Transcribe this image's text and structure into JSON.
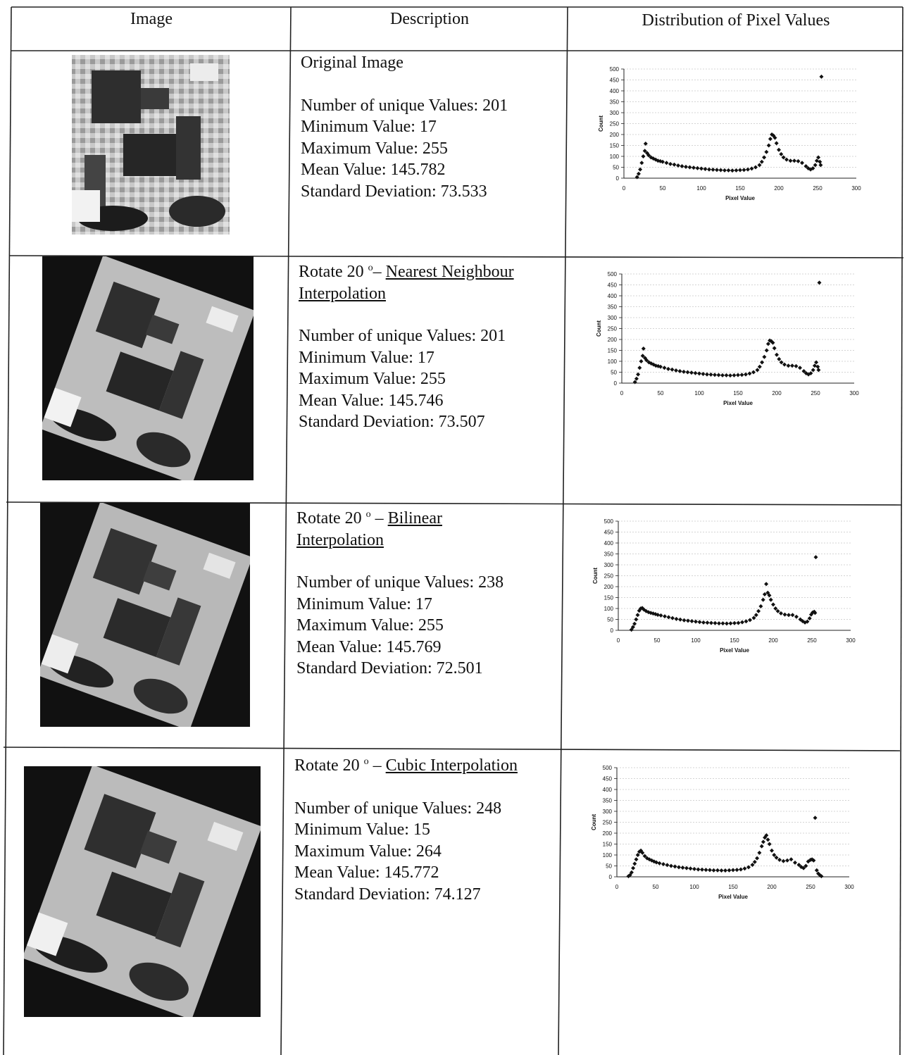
{
  "table": {
    "headers": {
      "image": "Image",
      "description": "Description",
      "distribution": "Distribution of Pixel Values"
    }
  },
  "rows": [
    {
      "title_plain": "Original Image",
      "stats": {
        "unique": "Number of unique Values: 201",
        "min": "Minimum Value: 17",
        "max": "Maximum Value: 255",
        "mean": "Mean Value: 145.782",
        "std": "Standard Deviation: 73.533"
      }
    },
    {
      "title_prefix": "Rotate 20",
      "title_deg": "o",
      "title_dash": "– ",
      "title_method_line1": "Nearest Neighbour",
      "title_method_line2": "Interpolation",
      "stats": {
        "unique": "Number of unique Values: 201",
        "min": "Minimum Value: 17",
        "max": "Maximum Value: 255",
        "mean": "Mean Value: 145.746",
        "std": "Standard Deviation: 73.507"
      }
    },
    {
      "title_prefix": "Rotate 20",
      "title_deg": "o",
      "title_dash": " – ",
      "title_method_line1": "Bilinear",
      "title_method_line2": "Interpolation",
      "stats": {
        "unique": "Number of unique Values: 238",
        "min": "Minimum Value: 17",
        "max": "Maximum Value: 255",
        "mean": "Mean Value: 145.769",
        "std": "Standard Deviation: 72.501"
      }
    },
    {
      "title_prefix": "Rotate 20",
      "title_deg": "o",
      "title_dash": " – ",
      "title_method_line1": "Cubic Interpolation",
      "stats": {
        "unique": "Number of unique Values: 248",
        "min": "Minimum Value: 15",
        "max": "Maximum Value: 264",
        "mean": "Mean Value: 145.772",
        "std": "Standard Deviation: 74.127"
      }
    }
  ],
  "chart_data": [
    {
      "type": "scatter",
      "title": "",
      "xlabel": "Pixel Value",
      "ylabel": "Count",
      "xlim": [
        0,
        300
      ],
      "ylim": [
        0,
        500
      ],
      "grid": true,
      "xticks": [
        "0",
        "50",
        "100",
        "150",
        "200",
        "250",
        "300"
      ],
      "yticks": [
        "0",
        "50",
        "100",
        "150",
        "200",
        "250",
        "300",
        "350",
        "400",
        "450",
        "500"
      ],
      "points": [
        [
          17,
          5
        ],
        [
          19,
          20
        ],
        [
          21,
          40
        ],
        [
          23,
          70
        ],
        [
          25,
          100
        ],
        [
          27,
          125
        ],
        [
          28,
          158
        ],
        [
          30,
          115
        ],
        [
          32,
          105
        ],
        [
          35,
          95
        ],
        [
          38,
          90
        ],
        [
          41,
          85
        ],
        [
          44,
          80
        ],
        [
          47,
          78
        ],
        [
          50,
          75
        ],
        [
          55,
          70
        ],
        [
          60,
          65
        ],
        [
          65,
          62
        ],
        [
          70,
          58
        ],
        [
          75,
          55
        ],
        [
          80,
          52
        ],
        [
          85,
          50
        ],
        [
          90,
          48
        ],
        [
          95,
          46
        ],
        [
          100,
          44
        ],
        [
          105,
          42
        ],
        [
          110,
          40
        ],
        [
          115,
          39
        ],
        [
          120,
          38
        ],
        [
          125,
          37
        ],
        [
          130,
          36
        ],
        [
          135,
          36
        ],
        [
          140,
          35
        ],
        [
          145,
          36
        ],
        [
          150,
          37
        ],
        [
          155,
          38
        ],
        [
          160,
          40
        ],
        [
          165,
          44
        ],
        [
          170,
          50
        ],
        [
          175,
          60
        ],
        [
          178,
          75
        ],
        [
          181,
          95
        ],
        [
          184,
          120
        ],
        [
          187,
          150
        ],
        [
          189,
          180
        ],
        [
          191,
          200
        ],
        [
          193,
          195
        ],
        [
          195,
          185
        ],
        [
          197,
          160
        ],
        [
          200,
          130
        ],
        [
          203,
          110
        ],
        [
          206,
          95
        ],
        [
          210,
          85
        ],
        [
          215,
          80
        ],
        [
          220,
          80
        ],
        [
          225,
          78
        ],
        [
          230,
          70
        ],
        [
          235,
          55
        ],
        [
          238,
          45
        ],
        [
          241,
          40
        ],
        [
          244,
          45
        ],
        [
          247,
          60
        ],
        [
          249,
          80
        ],
        [
          251,
          95
        ],
        [
          253,
          75
        ],
        [
          254,
          60
        ],
        [
          255,
          465
        ]
      ]
    },
    {
      "type": "scatter",
      "title": "",
      "xlabel": "Pixel Value",
      "ylabel": "Count",
      "xlim": [
        0,
        300
      ],
      "ylim": [
        0,
        500
      ],
      "grid": true,
      "xticks": [
        "0",
        "50",
        "100",
        "150",
        "200",
        "250",
        "300"
      ],
      "yticks": [
        "0",
        "50",
        "100",
        "150",
        "200",
        "250",
        "300",
        "350",
        "400",
        "450",
        "500"
      ],
      "points": [
        [
          17,
          5
        ],
        [
          19,
          20
        ],
        [
          21,
          40
        ],
        [
          23,
          70
        ],
        [
          25,
          100
        ],
        [
          27,
          125
        ],
        [
          28,
          158
        ],
        [
          30,
          115
        ],
        [
          32,
          105
        ],
        [
          35,
          95
        ],
        [
          38,
          90
        ],
        [
          41,
          85
        ],
        [
          44,
          80
        ],
        [
          47,
          78
        ],
        [
          50,
          75
        ],
        [
          55,
          70
        ],
        [
          60,
          65
        ],
        [
          65,
          62
        ],
        [
          70,
          58
        ],
        [
          75,
          55
        ],
        [
          80,
          52
        ],
        [
          85,
          50
        ],
        [
          90,
          48
        ],
        [
          95,
          46
        ],
        [
          100,
          44
        ],
        [
          105,
          42
        ],
        [
          110,
          40
        ],
        [
          115,
          39
        ],
        [
          120,
          38
        ],
        [
          125,
          37
        ],
        [
          130,
          36
        ],
        [
          135,
          36
        ],
        [
          140,
          35
        ],
        [
          145,
          36
        ],
        [
          150,
          37
        ],
        [
          155,
          38
        ],
        [
          160,
          40
        ],
        [
          165,
          44
        ],
        [
          170,
          50
        ],
        [
          175,
          60
        ],
        [
          178,
          75
        ],
        [
          181,
          95
        ],
        [
          184,
          120
        ],
        [
          187,
          150
        ],
        [
          189,
          180
        ],
        [
          191,
          195
        ],
        [
          193,
          192
        ],
        [
          195,
          185
        ],
        [
          197,
          160
        ],
        [
          200,
          130
        ],
        [
          203,
          110
        ],
        [
          206,
          95
        ],
        [
          210,
          85
        ],
        [
          215,
          80
        ],
        [
          220,
          80
        ],
        [
          225,
          78
        ],
        [
          230,
          70
        ],
        [
          235,
          55
        ],
        [
          238,
          45
        ],
        [
          241,
          40
        ],
        [
          244,
          45
        ],
        [
          247,
          60
        ],
        [
          249,
          80
        ],
        [
          251,
          95
        ],
        [
          253,
          75
        ],
        [
          254,
          60
        ],
        [
          255,
          460
        ]
      ]
    },
    {
      "type": "scatter",
      "title": "",
      "xlabel": "Pixel Value",
      "ylabel": "Count",
      "xlim": [
        0,
        300
      ],
      "ylim": [
        0,
        500
      ],
      "grid": true,
      "xticks": [
        "0",
        "50",
        "100",
        "150",
        "200",
        "250",
        "300"
      ],
      "yticks": [
        "0",
        "50",
        "100",
        "150",
        "200",
        "250",
        "300",
        "350",
        "400",
        "450",
        "500"
      ],
      "points": [
        [
          17,
          3
        ],
        [
          19,
          15
        ],
        [
          21,
          30
        ],
        [
          23,
          50
        ],
        [
          25,
          70
        ],
        [
          27,
          90
        ],
        [
          29,
          100
        ],
        [
          31,
          102
        ],
        [
          33,
          95
        ],
        [
          36,
          88
        ],
        [
          39,
          83
        ],
        [
          42,
          80
        ],
        [
          45,
          77
        ],
        [
          48,
          74
        ],
        [
          51,
          71
        ],
        [
          55,
          68
        ],
        [
          60,
          64
        ],
        [
          65,
          60
        ],
        [
          70,
          56
        ],
        [
          75,
          52
        ],
        [
          80,
          49
        ],
        [
          85,
          46
        ],
        [
          90,
          44
        ],
        [
          95,
          42
        ],
        [
          100,
          40
        ],
        [
          105,
          38
        ],
        [
          110,
          36
        ],
        [
          115,
          35
        ],
        [
          120,
          34
        ],
        [
          125,
          33
        ],
        [
          130,
          32
        ],
        [
          135,
          32
        ],
        [
          140,
          31
        ],
        [
          145,
          32
        ],
        [
          150,
          33
        ],
        [
          155,
          34
        ],
        [
          160,
          37
        ],
        [
          165,
          41
        ],
        [
          170,
          47
        ],
        [
          175,
          57
        ],
        [
          178,
          70
        ],
        [
          181,
          88
        ],
        [
          184,
          110
        ],
        [
          187,
          140
        ],
        [
          189,
          165
        ],
        [
          191,
          212
        ],
        [
          193,
          172
        ],
        [
          195,
          160
        ],
        [
          197,
          140
        ],
        [
          200,
          118
        ],
        [
          203,
          100
        ],
        [
          206,
          88
        ],
        [
          210,
          78
        ],
        [
          215,
          72
        ],
        [
          220,
          70
        ],
        [
          225,
          70
        ],
        [
          230,
          62
        ],
        [
          235,
          50
        ],
        [
          238,
          42
        ],
        [
          241,
          36
        ],
        [
          244,
          40
        ],
        [
          247,
          55
        ],
        [
          249,
          72
        ],
        [
          251,
          82
        ],
        [
          253,
          85
        ],
        [
          254,
          80
        ],
        [
          255,
          335
        ]
      ]
    },
    {
      "type": "scatter",
      "title": "",
      "xlabel": "Pixel Value",
      "ylabel": "Count",
      "xlim": [
        0,
        300
      ],
      "ylim": [
        0,
        500
      ],
      "grid": true,
      "xticks": [
        "0",
        "50",
        "100",
        "150",
        "200",
        "250",
        "300"
      ],
      "yticks": [
        "0",
        "50",
        "100",
        "150",
        "200",
        "250",
        "300",
        "350",
        "400",
        "450",
        "500"
      ],
      "points": [
        [
          15,
          3
        ],
        [
          17,
          8
        ],
        [
          19,
          20
        ],
        [
          21,
          40
        ],
        [
          23,
          60
        ],
        [
          25,
          80
        ],
        [
          27,
          100
        ],
        [
          29,
          115
        ],
        [
          31,
          120
        ],
        [
          33,
          110
        ],
        [
          36,
          95
        ],
        [
          39,
          85
        ],
        [
          42,
          80
        ],
        [
          45,
          75
        ],
        [
          48,
          70
        ],
        [
          51,
          66
        ],
        [
          55,
          62
        ],
        [
          60,
          58
        ],
        [
          65,
          54
        ],
        [
          70,
          50
        ],
        [
          75,
          47
        ],
        [
          80,
          44
        ],
        [
          85,
          42
        ],
        [
          90,
          40
        ],
        [
          95,
          38
        ],
        [
          100,
          36
        ],
        [
          105,
          34
        ],
        [
          110,
          33
        ],
        [
          115,
          32
        ],
        [
          120,
          31
        ],
        [
          125,
          30
        ],
        [
          130,
          30
        ],
        [
          135,
          29
        ],
        [
          140,
          29
        ],
        [
          145,
          30
        ],
        [
          150,
          31
        ],
        [
          155,
          32
        ],
        [
          160,
          34
        ],
        [
          165,
          38
        ],
        [
          170,
          44
        ],
        [
          175,
          55
        ],
        [
          178,
          68
        ],
        [
          181,
          85
        ],
        [
          184,
          110
        ],
        [
          187,
          140
        ],
        [
          189,
          160
        ],
        [
          191,
          180
        ],
        [
          193,
          190
        ],
        [
          195,
          170
        ],
        [
          197,
          150
        ],
        [
          200,
          120
        ],
        [
          203,
          100
        ],
        [
          206,
          88
        ],
        [
          210,
          78
        ],
        [
          215,
          72
        ],
        [
          220,
          75
        ],
        [
          225,
          80
        ],
        [
          230,
          65
        ],
        [
          235,
          55
        ],
        [
          238,
          45
        ],
        [
          241,
          40
        ],
        [
          244,
          50
        ],
        [
          247,
          70
        ],
        [
          250,
          78
        ],
        [
          252,
          80
        ],
        [
          254,
          75
        ],
        [
          256,
          270
        ],
        [
          258,
          30
        ],
        [
          260,
          15
        ],
        [
          262,
          8
        ],
        [
          264,
          3
        ]
      ]
    }
  ]
}
